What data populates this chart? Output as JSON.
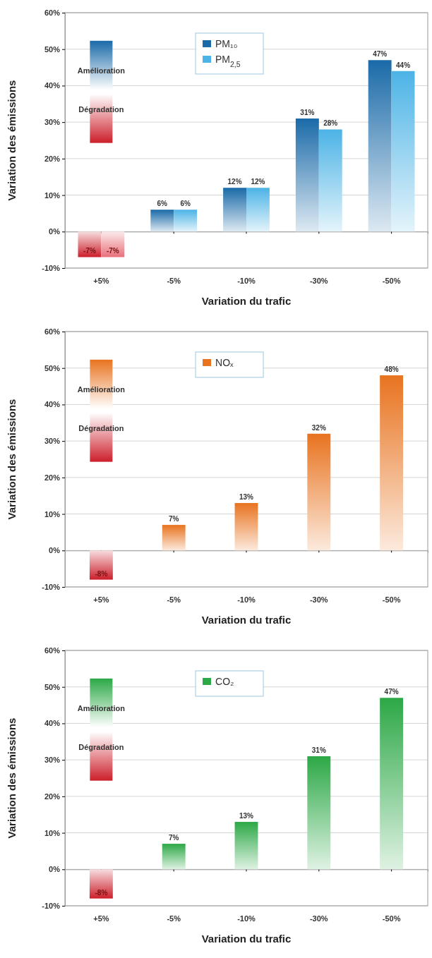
{
  "chart_data": [
    {
      "type": "bar",
      "xlabel": "Variation du trafic",
      "ylabel": "Variation des émissions",
      "categories": [
        "+5%",
        "-5%",
        "-10%",
        "-30%",
        "-50%"
      ],
      "series": [
        {
          "name": "PM₁₀",
          "color": "#1a6aa8",
          "colors": [
            "#cc1f2b",
            "#1a6aa8",
            "#1a6aa8",
            "#1a6aa8",
            "#1a6aa8"
          ],
          "values": [
            -7,
            6,
            12,
            31,
            47
          ],
          "value_labels": [
            "-7%",
            "6%",
            "12%",
            "31%",
            "47%"
          ]
        },
        {
          "name": "PM$_{2,5}$",
          "color": "#4cb3e6",
          "colors": [
            "#e8707a",
            "#4cb3e6",
            "#4cb3e6",
            "#4cb3e6",
            "#4cb3e6"
          ],
          "values": [
            -7,
            6,
            12,
            28,
            44
          ],
          "value_labels": [
            "-7%",
            "6%",
            "12%",
            "28%",
            "44%"
          ]
        }
      ],
      "ylim": [
        -10,
        60
      ],
      "yticks": [
        {
          "value": -10,
          "label": "-10%"
        },
        {
          "value": 0,
          "label": "0%"
        },
        {
          "value": 10,
          "label": "10%"
        },
        {
          "value": 20,
          "label": "20%"
        },
        {
          "value": 30,
          "label": "30%"
        },
        {
          "value": 40,
          "label": "40%"
        },
        {
          "value": 50,
          "label": "50%"
        },
        {
          "value": 60,
          "label": "60%"
        }
      ],
      "grid": "y",
      "legend": "top",
      "annotations": [
        "Amélioration",
        "Dégradation"
      ]
    },
    {
      "type": "bar",
      "xlabel": "Variation du trafic",
      "ylabel": "Variation des émissions",
      "categories": [
        "+5%",
        "-5%",
        "-10%",
        "-30%",
        "-50%"
      ],
      "series": [
        {
          "name": "NOₓ",
          "color": "#e8731f",
          "colors": [
            "#cc1f2b",
            "#e8731f",
            "#e8731f",
            "#e8731f",
            "#e8731f"
          ],
          "values": [
            -8,
            7,
            13,
            32,
            48
          ],
          "value_labels": [
            "-8%",
            "7%",
            "13%",
            "32%",
            "48%"
          ]
        }
      ],
      "ylim": [
        -10,
        60
      ],
      "yticks": [
        {
          "value": -10,
          "label": "-10%"
        },
        {
          "value": 0,
          "label": "0%"
        },
        {
          "value": 10,
          "label": "10%"
        },
        {
          "value": 20,
          "label": "20%"
        },
        {
          "value": 30,
          "label": "30%"
        },
        {
          "value": 40,
          "label": "40%"
        },
        {
          "value": 50,
          "label": "50%"
        },
        {
          "value": 60,
          "label": "60%"
        }
      ],
      "grid": "y",
      "legend": "top",
      "annotations": [
        "Amélioration",
        "Dégradation"
      ]
    },
    {
      "type": "bar",
      "xlabel": "Variation du trafic",
      "ylabel": "Variation des émissions",
      "categories": [
        "+5%",
        "-5%",
        "-10%",
        "-30%",
        "-50%"
      ],
      "series": [
        {
          "name": "CO₂",
          "color": "#2ca846",
          "colors": [
            "#cc1f2b",
            "#2ca846",
            "#2ca846",
            "#2ca846",
            "#2ca846"
          ],
          "values": [
            -8,
            7,
            13,
            31,
            47
          ],
          "value_labels": [
            "-8%",
            "7%",
            "13%",
            "31%",
            "47%"
          ]
        }
      ],
      "ylim": [
        -10,
        60
      ],
      "yticks": [
        {
          "value": -10,
          "label": "-10%"
        },
        {
          "value": 0,
          "label": "0%"
        },
        {
          "value": 10,
          "label": "10%"
        },
        {
          "value": 20,
          "label": "20%"
        },
        {
          "value": 30,
          "label": "30%"
        },
        {
          "value": 40,
          "label": "40%"
        },
        {
          "value": 50,
          "label": "50%"
        },
        {
          "value": 60,
          "label": "60%"
        }
      ],
      "grid": "y",
      "legend": "top",
      "annotations": [
        "Amélioration",
        "Dégradation"
      ]
    }
  ]
}
